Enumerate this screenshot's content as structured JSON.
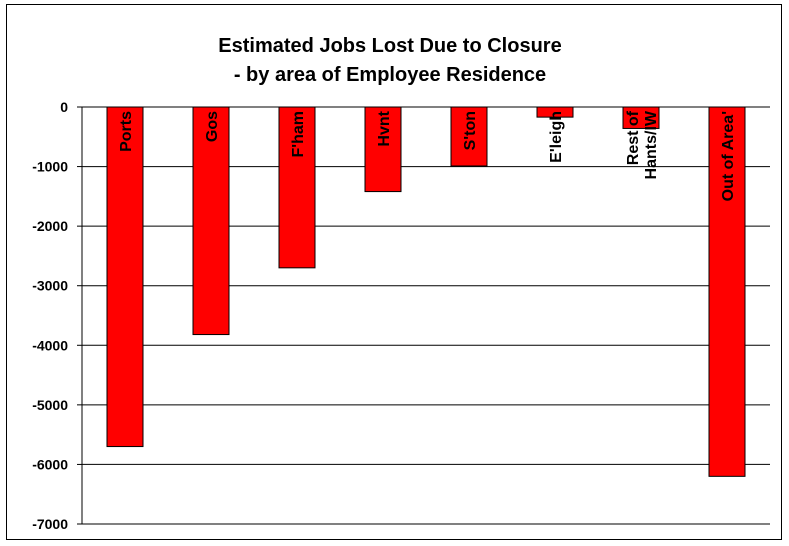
{
  "chart_data": {
    "type": "bar",
    "title": "Estimated Jobs Lost Due to Closure",
    "subtitle": "- by area of Employee Residence",
    "xlabel": "",
    "ylabel": "",
    "categories": [
      [
        "Ports"
      ],
      [
        "Gos"
      ],
      [
        "F'ham"
      ],
      [
        "Hvnt"
      ],
      [
        "S'ton"
      ],
      [
        "E'leigh"
      ],
      [
        "Rest of",
        "Hants/IW"
      ],
      [
        "Out of Area'"
      ]
    ],
    "values": [
      -5700,
      -3820,
      -2700,
      -1420,
      -990,
      -170,
      -360,
      -6200
    ],
    "ylim": [
      -7000,
      0
    ],
    "yticks": [
      0,
      -1000,
      -2000,
      -3000,
      -4000,
      -5000,
      -6000,
      -7000
    ],
    "grid": true,
    "legend": "none",
    "bar_color": "#ff0000",
    "bar_stroke": "#000000"
  }
}
